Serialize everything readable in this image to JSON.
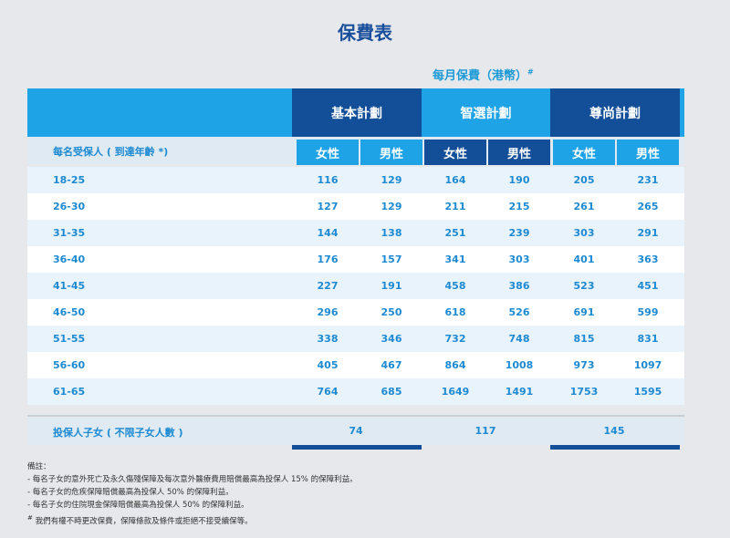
{
  "title": "保費表",
  "currency_label": "每月保費（港幣）",
  "currency_mark": "#",
  "plans": [
    "基本計劃",
    "智選計劃",
    "尊尚計劃"
  ],
  "insured_label": "每名受保人 ( 到達年齡 *)",
  "genders": [
    "女性",
    "男性",
    "女性",
    "男性",
    "女性",
    "男性"
  ],
  "rows": [
    {
      "age": "18-25",
      "values": [
        "116",
        "129",
        "164",
        "190",
        "205",
        "231"
      ]
    },
    {
      "age": "26-30",
      "values": [
        "127",
        "129",
        "211",
        "215",
        "261",
        "265"
      ]
    },
    {
      "age": "31-35",
      "values": [
        "144",
        "138",
        "251",
        "239",
        "303",
        "291"
      ]
    },
    {
      "age": "36-40",
      "values": [
        "176",
        "157",
        "341",
        "303",
        "401",
        "363"
      ]
    },
    {
      "age": "41-45",
      "values": [
        "227",
        "191",
        "458",
        "386",
        "523",
        "451"
      ]
    },
    {
      "age": "46-50",
      "values": [
        "296",
        "250",
        "618",
        "526",
        "691",
        "599"
      ]
    },
    {
      "age": "51-55",
      "values": [
        "338",
        "346",
        "732",
        "748",
        "815",
        "831"
      ]
    },
    {
      "age": "56-60",
      "values": [
        "405",
        "467",
        "864",
        "1008",
        "973",
        "1097"
      ]
    },
    {
      "age": "61-65",
      "values": [
        "764",
        "685",
        "1649",
        "1491",
        "1753",
        "1595"
      ]
    }
  ],
  "child_label": "投保人子女 ( 不限子女人數 )",
  "child_values": [
    "74",
    "117",
    "145"
  ],
  "notes_title": "備註：",
  "notes": [
    "- 每名子女的意外死亡及永久傷殘保障及每次意外醫療費用賠償最高為投保人 15% 的保障利益。",
    "- 每名子女的危疾保障賠償最高為投保人 50% 的保障利益。",
    "- 每名子女的住院現金保障賠償最高為投保人 50% 的保障利益。",
    "我們有權不時更改保費，保障條款及條件或拒絕不接受續保等。"
  ],
  "notes_last_mark": "#",
  "colors": {
    "dark_blue": "#134e98",
    "light_blue": "#1ea3e6",
    "text_blue": "#1d8ad2",
    "title_blue": "#1b4f9c"
  }
}
